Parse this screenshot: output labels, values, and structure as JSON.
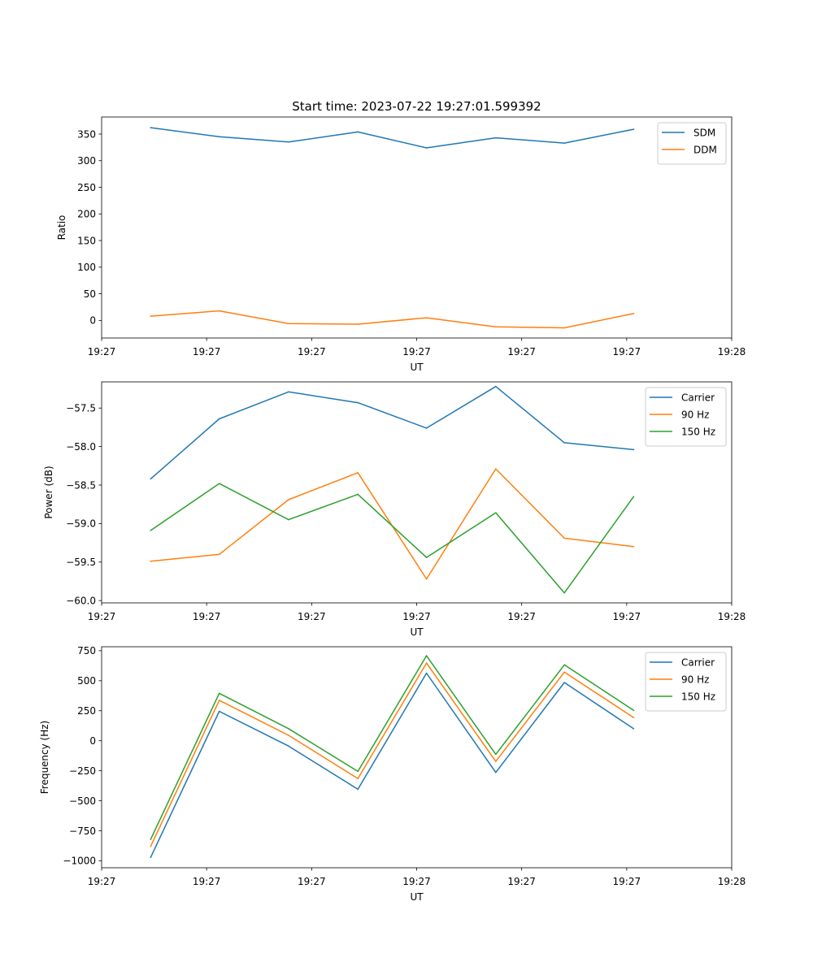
{
  "figure": {
    "title": "Start time: 2023-07-22 19:27:01.599392"
  },
  "colors": {
    "blue": "#1f77b4",
    "orange": "#ff7f0e",
    "green": "#2ca02c"
  },
  "chart_data": [
    {
      "type": "line",
      "xlabel": "UT",
      "ylabel": "Ratio",
      "xlim": [
        0,
        9
      ],
      "ylim": [
        -33,
        382
      ],
      "x_ticks": [
        0,
        1.5,
        3,
        4.5,
        6,
        7.5,
        9
      ],
      "x_tick_labels": [
        "19:27",
        "19:27",
        "19:27",
        "19:27",
        "19:27",
        "19:27",
        "19:28"
      ],
      "y_ticks": [
        0,
        50,
        100,
        150,
        200,
        250,
        300,
        350
      ],
      "y_tick_labels": [
        "0",
        "50",
        "100",
        "150",
        "200",
        "250",
        "300",
        "350"
      ],
      "x": [
        0.7,
        1.68,
        2.67,
        3.66,
        4.64,
        5.63,
        6.61,
        7.6
      ],
      "series": [
        {
          "name": "SDM",
          "color": "#1f77b4",
          "values": [
            362,
            345,
            335,
            354,
            324,
            343,
            333,
            359
          ]
        },
        {
          "name": "DDM",
          "color": "#ff7f0e",
          "values": [
            8,
            18,
            -6,
            -7,
            5,
            -12,
            -14,
            13
          ]
        }
      ],
      "legend": "top-right"
    },
    {
      "type": "line",
      "xlabel": "UT",
      "ylabel": "Power (dB)",
      "xlim": [
        0,
        9
      ],
      "ylim": [
        -60.03,
        -57.16
      ],
      "x_ticks": [
        0,
        1.5,
        3,
        4.5,
        6,
        7.5,
        9
      ],
      "x_tick_labels": [
        "19:27",
        "19:27",
        "19:27",
        "19:27",
        "19:27",
        "19:27",
        "19:28"
      ],
      "y_ticks": [
        -60.0,
        -59.5,
        -59.0,
        -58.5,
        -58.0,
        -57.5
      ],
      "y_tick_labels": [
        "−60.0",
        "−59.5",
        "−59.0",
        "−58.5",
        "−58.0",
        "−57.5"
      ],
      "x": [
        0.7,
        1.68,
        2.67,
        3.66,
        4.64,
        5.63,
        6.61,
        7.6
      ],
      "series": [
        {
          "name": "Carrier",
          "color": "#1f77b4",
          "values": [
            -58.42,
            -57.64,
            -57.29,
            -57.43,
            -57.76,
            -57.22,
            -57.95,
            -58.04
          ]
        },
        {
          "name": "90 Hz",
          "color": "#ff7f0e",
          "values": [
            -59.49,
            -59.4,
            -58.69,
            -58.34,
            -59.72,
            -58.29,
            -59.19,
            -59.3
          ]
        },
        {
          "name": "150 Hz",
          "color": "#2ca02c",
          "values": [
            -59.09,
            -58.48,
            -58.95,
            -58.62,
            -59.44,
            -58.86,
            -59.9,
            -58.65
          ]
        }
      ],
      "legend": "top-right"
    },
    {
      "type": "line",
      "xlabel": "UT",
      "ylabel": "Frequency (Hz)",
      "xlim": [
        0,
        9
      ],
      "ylim": [
        -1058,
        783
      ],
      "x_ticks": [
        0,
        1.5,
        3,
        4.5,
        6,
        7.5,
        9
      ],
      "x_tick_labels": [
        "19:27",
        "19:27",
        "19:27",
        "19:27",
        "19:27",
        "19:27",
        "19:28"
      ],
      "y_ticks": [
        -1000,
        -750,
        -500,
        -250,
        0,
        250,
        500,
        750
      ],
      "y_tick_labels": [
        "−1000",
        "−750",
        "−500",
        "−250",
        "0",
        "250",
        "500",
        "750"
      ],
      "x": [
        0.7,
        1.68,
        2.67,
        3.66,
        4.64,
        5.63,
        6.61,
        7.6
      ],
      "series": [
        {
          "name": "Carrier",
          "color": "#1f77b4",
          "values": [
            -972,
            245,
            -44,
            -404,
            563,
            -264,
            485,
            100
          ]
        },
        {
          "name": "90 Hz",
          "color": "#ff7f0e",
          "values": [
            -880,
            337,
            45,
            -315,
            647,
            -172,
            572,
            193
          ]
        },
        {
          "name": "150 Hz",
          "color": "#2ca02c",
          "values": [
            -822,
            395,
            101,
            -255,
            708,
            -113,
            632,
            253
          ]
        }
      ],
      "legend": "top-right"
    }
  ]
}
